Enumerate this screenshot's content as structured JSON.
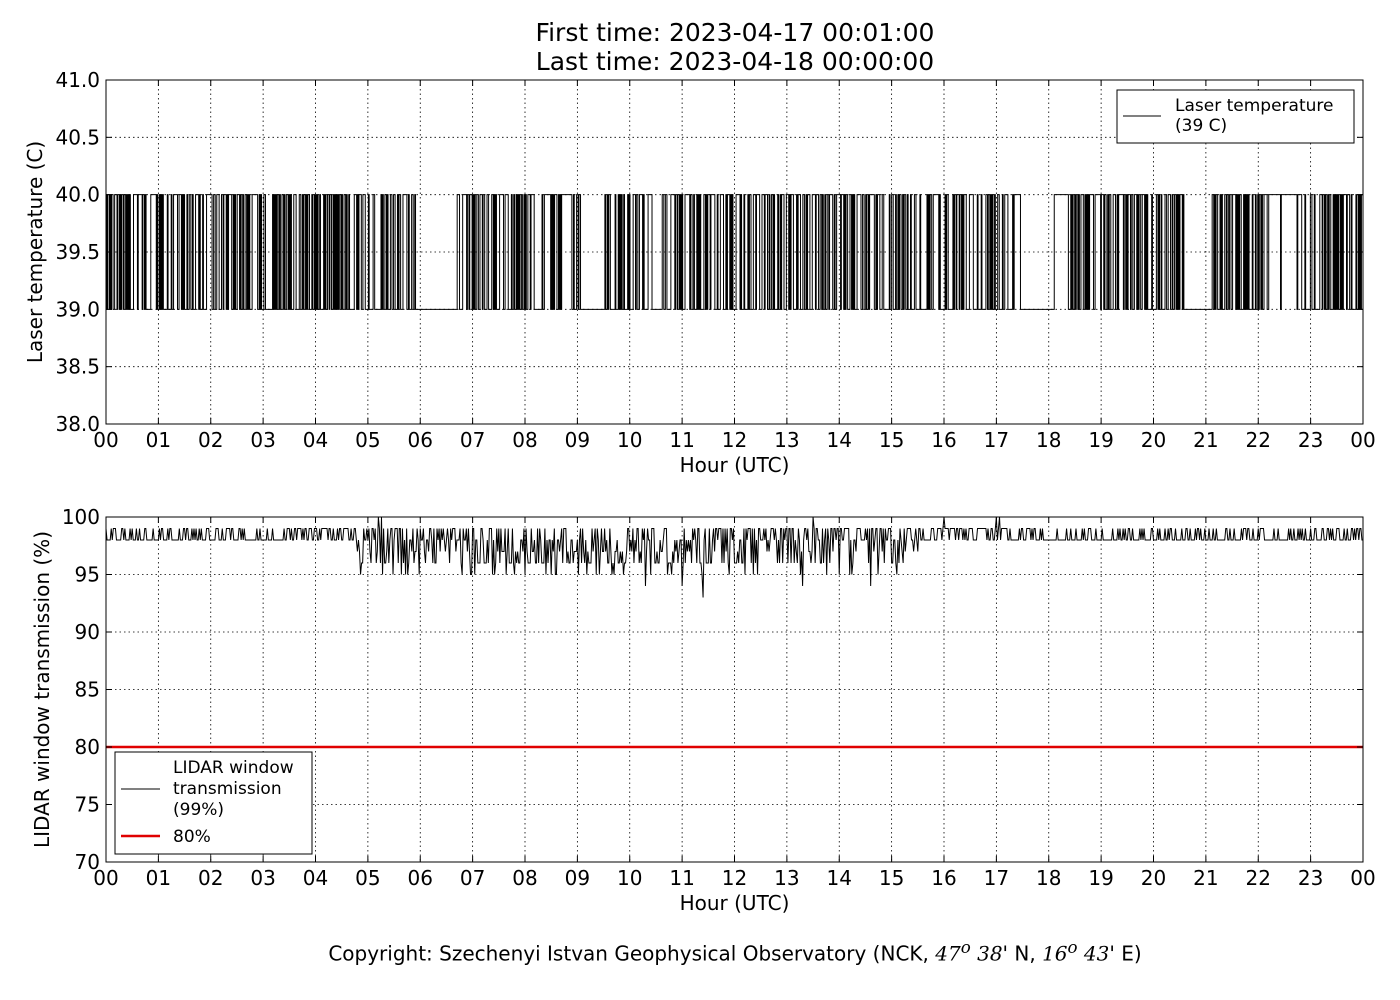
{
  "title": {
    "line1": "First time: 2023-04-17 00:01:00",
    "line2": "Last time: 2023-04-18 00:00:00"
  },
  "copyright": {
    "prefix": "Copyright: Szechenyi Istvan Geophysical Observatory (NCK, ",
    "lat_deg": "47",
    "lat_sup": "o",
    "lat_min": "38",
    "lat_suffix": "' N, ",
    "lon_deg": "16",
    "lon_sup": "o",
    "lon_min": "43",
    "lon_suffix": "' E)"
  },
  "chart_data": [
    {
      "type": "line",
      "xlabel": "Hour (UTC)",
      "ylabel": "Laser temperature (C)",
      "xlim": [
        0,
        24
      ],
      "ylim": [
        38.0,
        41.0
      ],
      "xticks": [
        "00",
        "01",
        "02",
        "03",
        "04",
        "05",
        "06",
        "07",
        "08",
        "09",
        "10",
        "11",
        "12",
        "13",
        "14",
        "15",
        "16",
        "17",
        "18",
        "19",
        "20",
        "21",
        "22",
        "23",
        "00"
      ],
      "yticks": [
        "38.0",
        "38.5",
        "39.0",
        "39.5",
        "40.0",
        "40.5",
        "41.0"
      ],
      "grid": true,
      "legend_position": "top-right",
      "series": [
        {
          "name": "Laser temperature\n(39 C)",
          "color": "#000000",
          "levels": [
            39.0,
            40.0
          ],
          "pattern": "frequent switching between 39.0 and 40.0 all day; flat 39.0 at about 05.9-06.7, 09.1-09.5, 17.5-18.1 and 20.6-21.1"
        }
      ]
    },
    {
      "type": "line",
      "xlabel": "Hour (UTC)",
      "ylabel": "LIDAR window transmission (%)",
      "xlim": [
        0,
        24
      ],
      "ylim": [
        70,
        100
      ],
      "xticks": [
        "00",
        "01",
        "02",
        "03",
        "04",
        "05",
        "06",
        "07",
        "08",
        "09",
        "10",
        "11",
        "12",
        "13",
        "14",
        "15",
        "16",
        "17",
        "18",
        "19",
        "20",
        "21",
        "22",
        "23",
        "00"
      ],
      "yticks": [
        "70",
        "75",
        "80",
        "85",
        "90",
        "95",
        "100"
      ],
      "grid": true,
      "legend_position": "lower-left",
      "series": [
        {
          "name": "LIDAR window\ntransmission\n(99%)",
          "color": "#000000",
          "baseline": 98,
          "pattern": "mostly 98-99 %, dips between 08 and 15 h, minimum about 93 % near 11.4 h, peaks at 100 % near 05.2, 13.5, 16.0 and 17.0 h"
        },
        {
          "name": "80%",
          "color": "#e00000",
          "value": 80
        }
      ]
    }
  ]
}
